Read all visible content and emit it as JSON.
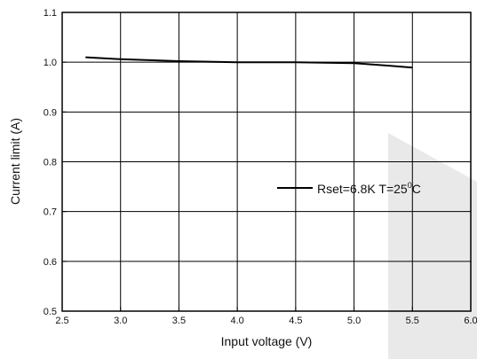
{
  "chart_data": {
    "type": "line",
    "title": "",
    "xlabel": "Input voltage (V)",
    "ylabel": "Current limit (A)",
    "xlim": [
      2.5,
      6.0
    ],
    "ylim": [
      0.5,
      1.1
    ],
    "xticks": [
      "2.5",
      "3.0",
      "3.5",
      "4.0",
      "4.5",
      "5.0",
      "5.5",
      "6.0"
    ],
    "yticks": [
      "0.5",
      "0.6",
      "0.7",
      "0.8",
      "0.9",
      "1.0",
      "1.1"
    ],
    "grid": true,
    "legend_position": "right",
    "series": [
      {
        "name": "Rset=6.8K T=25°C",
        "name_parts": [
          "Rset=6.8K T=25",
          "0",
          "C"
        ],
        "color": "#000000",
        "x": [
          2.7,
          3.0,
          3.5,
          4.0,
          4.5,
          5.0,
          5.3,
          5.5
        ],
        "y": [
          1.01,
          1.006,
          1.002,
          1.0,
          1.0,
          0.998,
          0.993,
          0.989
        ]
      }
    ]
  }
}
